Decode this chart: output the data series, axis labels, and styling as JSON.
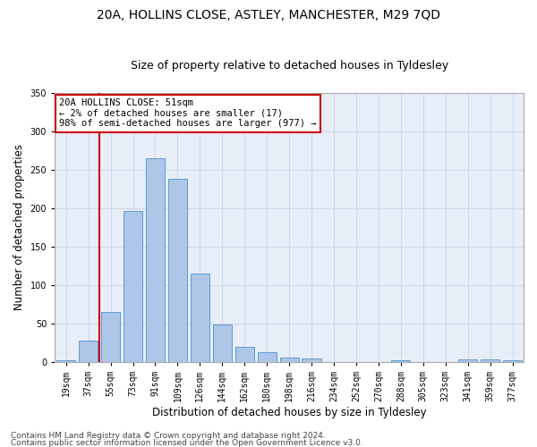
{
  "title1": "20A, HOLLINS CLOSE, ASTLEY, MANCHESTER, M29 7QD",
  "title2": "Size of property relative to detached houses in Tyldesley",
  "xlabel": "Distribution of detached houses by size in Tyldesley",
  "ylabel": "Number of detached properties",
  "categories": [
    "19sqm",
    "37sqm",
    "55sqm",
    "73sqm",
    "91sqm",
    "109sqm",
    "126sqm",
    "144sqm",
    "162sqm",
    "180sqm",
    "198sqm",
    "216sqm",
    "234sqm",
    "252sqm",
    "270sqm",
    "288sqm",
    "305sqm",
    "323sqm",
    "341sqm",
    "359sqm",
    "377sqm"
  ],
  "bar_heights": [
    2,
    28,
    65,
    197,
    265,
    239,
    115,
    49,
    20,
    12,
    5,
    4,
    0,
    0,
    0,
    2,
    0,
    0,
    3,
    3,
    2
  ],
  "bar_color": "#aec6e8",
  "bar_edge_color": "#5b9bd5",
  "vline_color": "#cc0000",
  "vline_x": 1.5,
  "annotation_text": "20A HOLLINS CLOSE: 51sqm\n← 2% of detached houses are smaller (17)\n98% of semi-detached houses are larger (977) →",
  "annotation_box_color": "#ffffff",
  "annotation_box_edge": "#cc0000",
  "ylim": [
    0,
    350
  ],
  "yticks": [
    0,
    50,
    100,
    150,
    200,
    250,
    300,
    350
  ],
  "grid_color": "#d0d8e8",
  "background_color": "#e8eef8",
  "footer1": "Contains HM Land Registry data © Crown copyright and database right 2024.",
  "footer2": "Contains public sector information licensed under the Open Government Licence v3.0.",
  "title1_fontsize": 10,
  "title2_fontsize": 9,
  "xlabel_fontsize": 8.5,
  "ylabel_fontsize": 8.5,
  "tick_fontsize": 7,
  "footer_fontsize": 6.5,
  "ann_fontsize": 7.5
}
